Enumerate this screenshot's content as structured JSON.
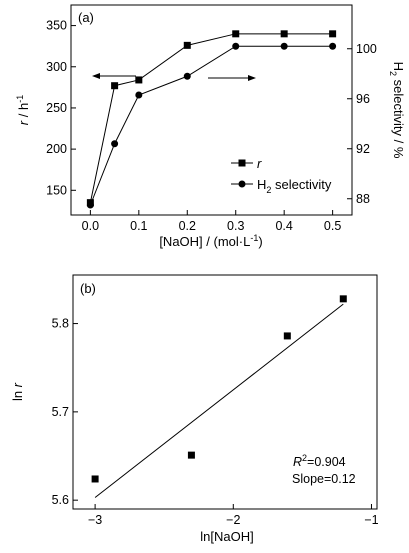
{
  "chart_data": [
    {
      "panel": "(a)",
      "type": "line",
      "x": [
        0.0,
        0.05,
        0.1,
        0.2,
        0.3,
        0.4,
        0.5
      ],
      "xlabel": "[NaOH] / (mol·L⁻¹)",
      "xticks": [
        "0.0",
        "0.1",
        "0.2",
        "0.3",
        "0.4",
        "0.5"
      ],
      "xlim": [
        -0.04,
        0.54
      ],
      "ylabel_left": "r / h⁻¹",
      "ylim_left": [
        120,
        375
      ],
      "yticks_left": [
        150,
        200,
        250,
        300,
        350
      ],
      "ylabel_right": "H₂ selectivity / %",
      "ylim_right": [
        86.7,
        103.5
      ],
      "yticks_right": [
        88,
        92,
        96,
        100
      ],
      "series": [
        {
          "name": "r",
          "axis": "left",
          "marker": "square",
          "values": [
            135,
            277,
            284,
            326,
            340,
            340,
            340
          ]
        },
        {
          "name": "H₂ selectivity",
          "axis": "right",
          "marker": "circle",
          "values": [
            87.5,
            92.4,
            96.3,
            97.8,
            100.2,
            100.2,
            100.2
          ]
        }
      ],
      "legend": "bottom-right",
      "arrows": [
        {
          "direction": "left",
          "refers_to": "r"
        },
        {
          "direction": "right",
          "refers_to": "H₂ selectivity"
        }
      ]
    },
    {
      "panel": "(b)",
      "type": "scatter",
      "x": [
        -3.0,
        -2.303,
        -1.609,
        -1.204
      ],
      "y": [
        5.624,
        5.651,
        5.786,
        5.828
      ],
      "fit": {
        "x": [
          -3.0,
          -1.204
        ],
        "y": [
          5.603,
          5.822
        ]
      },
      "xlabel": "ln[NaOH]",
      "ylabel": "ln r",
      "xticks": [
        -3,
        -2,
        -1
      ],
      "yticks": [
        5.6,
        5.7,
        5.8
      ],
      "xlim": [
        -3.16,
        -0.96
      ],
      "ylim": [
        5.59,
        5.855
      ],
      "annotations": [
        "R²=0.904",
        "Slope=0.12"
      ]
    }
  ]
}
